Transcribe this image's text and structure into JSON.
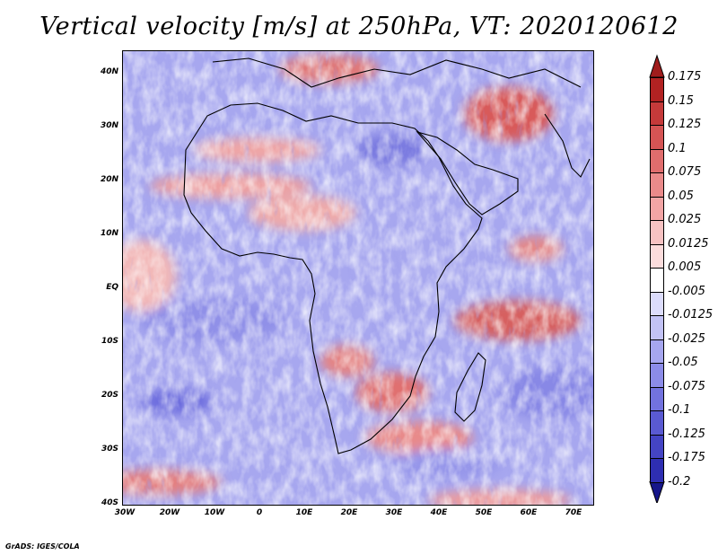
{
  "title": "Vertical velocity [m/s] at 250hPa, VT: 2020120612",
  "footer": "GrADS: IGES/COLA",
  "map": {
    "lon_range": [
      -30,
      75
    ],
    "lat_range": [
      -40,
      45
    ],
    "lat_labels": [
      "40N",
      "30N",
      "20N",
      "10N",
      "EQ",
      "10S",
      "20S",
      "30S",
      "40S"
    ],
    "lon_labels": [
      "30W",
      "20W",
      "10W",
      "0",
      "10E",
      "20E",
      "30E",
      "40E",
      "50E",
      "60E",
      "70E"
    ],
    "variable": "Vertical velocity",
    "units": "m/s",
    "level": "250hPa",
    "valid_time": "2020120612"
  },
  "colorbar": {
    "levels": [
      {
        "label": "0.175",
        "color": "#b22222"
      },
      {
        "label": "0.15",
        "color": "#c53a3a"
      },
      {
        "label": "0.125",
        "color": "#d55454"
      },
      {
        "label": "0.1",
        "color": "#e06d6d"
      },
      {
        "label": "0.075",
        "color": "#ea8a8a"
      },
      {
        "label": "0.05",
        "color": "#f2a5a5"
      },
      {
        "label": "0.025",
        "color": "#f7c2c2"
      },
      {
        "label": "0.0125",
        "color": "#fbdcdc"
      },
      {
        "label": "0.005",
        "color": "#ffffff"
      },
      {
        "label": "-0.005",
        "color": "#dcdcfb"
      },
      {
        "label": "-0.0125",
        "color": "#c2c2f5"
      },
      {
        "label": "-0.025",
        "color": "#a6a6ef"
      },
      {
        "label": "-0.05",
        "color": "#8c8ce8"
      },
      {
        "label": "-0.075",
        "color": "#7272de"
      },
      {
        "label": "-0.1",
        "color": "#5a5ad2"
      },
      {
        "label": "-0.125",
        "color": "#4444c4"
      },
      {
        "label": "-0.175",
        "color": "#2e2eb2"
      },
      {
        "label": "-0.2",
        "color": "#2020a0"
      }
    ],
    "arrow_top_color": "#a01c1c",
    "arrow_bottom_color": "#16168a"
  }
}
